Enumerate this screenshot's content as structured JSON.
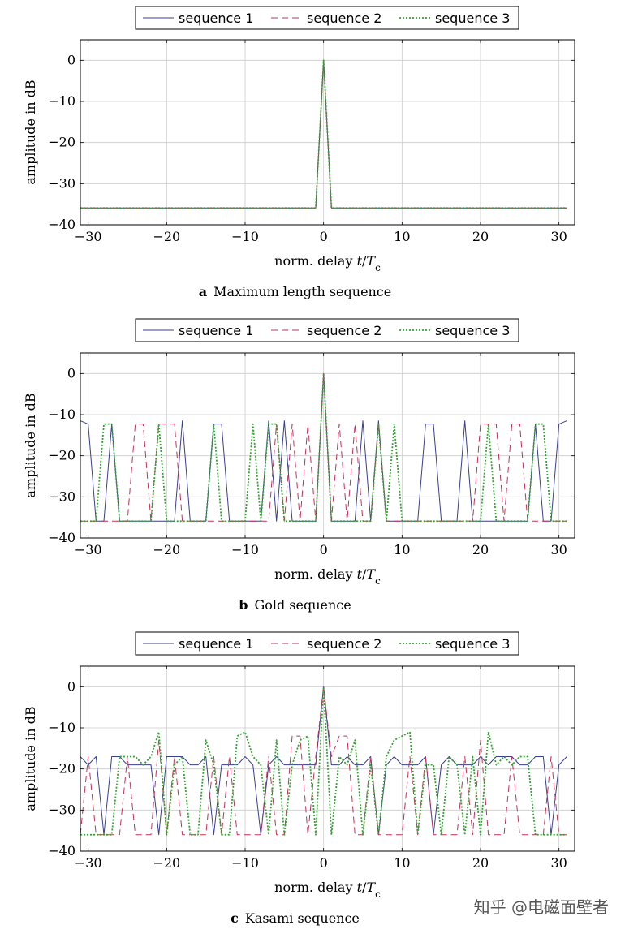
{
  "colors": {
    "sequence_1": "#3b3f8f",
    "sequence_2": "#c2305a",
    "sequence_3": "#2fa52f",
    "grid": "#cccccc"
  },
  "legend": [
    "sequence 1",
    "sequence 2",
    "sequence 3"
  ],
  "watermark": "知乎 @电磁面壁者",
  "chart_data": [
    {
      "type": "line",
      "caption_letter": "a",
      "caption_text": "Maximum length sequence",
      "xlabel": "norm. delay t/Tc",
      "ylabel": "amplitude in dB",
      "xlim": [
        -31,
        32
      ],
      "ylim": [
        -40,
        5
      ],
      "xticks": [
        -30,
        -20,
        -10,
        0,
        10,
        20,
        30
      ],
      "yticks": [
        0,
        -10,
        -20,
        -30,
        -40
      ],
      "tick_labels_x": [
        "−30",
        "−20",
        "−10",
        "0",
        "10",
        "20",
        "30"
      ],
      "tick_labels_y": [
        "0",
        "−10",
        "−20",
        "−30",
        "−40"
      ],
      "grid": true,
      "series": [
        {
          "name": "sequence 1",
          "x": [
            -31,
            -1,
            0,
            1,
            31
          ],
          "y": [
            -35.9,
            -35.9,
            0,
            -35.9,
            -35.9
          ]
        },
        {
          "name": "sequence 2",
          "x": [
            -31,
            -1,
            0,
            1,
            31
          ],
          "y": [
            -35.9,
            -35.9,
            0,
            -35.9,
            -35.9
          ]
        },
        {
          "name": "sequence 3",
          "x": [
            -31,
            -1,
            0,
            1,
            31
          ],
          "y": [
            -35.9,
            -35.9,
            0,
            -35.9,
            -35.9
          ]
        }
      ]
    },
    {
      "type": "line",
      "caption_letter": "b",
      "caption_text": "Gold sequence",
      "xlabel": "norm. delay t/Tc",
      "ylabel": "amplitude in dB",
      "xlim": [
        -31,
        32
      ],
      "ylim": [
        -40,
        5
      ],
      "xticks": [
        -30,
        -20,
        -10,
        0,
        10,
        20,
        30
      ],
      "yticks": [
        0,
        -10,
        -20,
        -30,
        -40
      ],
      "tick_labels_x": [
        "−30",
        "−20",
        "−10",
        "0",
        "10",
        "20",
        "30"
      ],
      "tick_labels_y": [
        "0",
        "−10",
        "−20",
        "−30",
        "−40"
      ],
      "grid": true,
      "series": [
        {
          "name": "sequence 1",
          "x": [
            -31,
            -30,
            -29,
            -28,
            -27,
            -26,
            -25,
            -24,
            -23,
            -22,
            -21,
            -20,
            -19,
            -18,
            -17,
            -16,
            -15,
            -14,
            -13,
            -12,
            -11,
            -10,
            -9,
            -8,
            -7,
            -6,
            -5,
            -4,
            -3,
            -2,
            -1,
            0,
            1,
            2,
            3,
            4,
            5,
            6,
            7,
            8,
            9,
            10,
            11,
            12,
            13,
            14,
            15,
            16,
            17,
            18,
            19,
            20,
            21,
            22,
            23,
            24,
            25,
            26,
            27,
            28,
            29,
            30,
            31
          ],
          "y": [
            -11.5,
            -12.3,
            -35.9,
            -35.9,
            -12.3,
            -35.9,
            -35.9,
            -35.9,
            -35.9,
            -35.9,
            -35.9,
            -35.9,
            -35.9,
            -11.5,
            -35.9,
            -35.9,
            -35.9,
            -12.3,
            -12.3,
            -35.9,
            -35.9,
            -35.9,
            -35.9,
            -35.9,
            -11.5,
            -35.9,
            -11.5,
            -35.9,
            -35.9,
            -35.9,
            -35.9,
            0,
            -35.9,
            -35.9,
            -35.9,
            -35.9,
            -11.5,
            -35.9,
            -11.5,
            -35.9,
            -35.9,
            -35.9,
            -35.9,
            -35.9,
            -12.3,
            -12.3,
            -35.9,
            -35.9,
            -35.9,
            -11.5,
            -35.9,
            -35.9,
            -35.9,
            -35.9,
            -35.9,
            -35.9,
            -35.9,
            -35.9,
            -12.3,
            -35.9,
            -35.9,
            -12.3,
            -11.5
          ]
        },
        {
          "name": "sequence 2",
          "x": [
            -31,
            -30,
            -29,
            -28,
            -27,
            -26,
            -25,
            -24,
            -23,
            -22,
            -21,
            -20,
            -19,
            -18,
            -17,
            -16,
            -15,
            -14,
            -13,
            -12,
            -11,
            -10,
            -9,
            -8,
            -7,
            -6,
            -5,
            -4,
            -3,
            -2,
            -1,
            0,
            1,
            2,
            3,
            4,
            5,
            6,
            7,
            8,
            9,
            10,
            11,
            12,
            13,
            14,
            15,
            16,
            17,
            18,
            19,
            20,
            21,
            22,
            23,
            24,
            25,
            26,
            27,
            28,
            29,
            30,
            31
          ],
          "y": [
            -35.9,
            -35.9,
            -35.9,
            -35.9,
            -35.9,
            -35.9,
            -35.9,
            -12.3,
            -12.3,
            -35.9,
            -12.3,
            -12.3,
            -12.3,
            -35.9,
            -35.9,
            -35.9,
            -35.9,
            -35.9,
            -35.9,
            -35.9,
            -35.9,
            -35.9,
            -35.9,
            -35.9,
            -35.9,
            -12.3,
            -35.9,
            -12.3,
            -35.9,
            -12.3,
            -35.9,
            0,
            -35.9,
            -12.3,
            -35.9,
            -12.3,
            -35.9,
            -35.9,
            -12.3,
            -35.9,
            -35.9,
            -35.9,
            -35.9,
            -35.9,
            -35.9,
            -35.9,
            -35.9,
            -35.9,
            -35.9,
            -35.9,
            -35.9,
            -12.3,
            -12.3,
            -12.3,
            -35.9,
            -12.3,
            -12.3,
            -35.9,
            -35.9,
            -35.9,
            -35.9,
            -35.9,
            -35.9
          ]
        },
        {
          "name": "sequence 3",
          "x": [
            -31,
            -30,
            -29,
            -28,
            -27,
            -26,
            -25,
            -24,
            -23,
            -22,
            -21,
            -20,
            -19,
            -18,
            -17,
            -16,
            -15,
            -14,
            -13,
            -12,
            -11,
            -10,
            -9,
            -8,
            -7,
            -6,
            -5,
            -4,
            -3,
            -2,
            -1,
            0,
            1,
            2,
            3,
            4,
            5,
            6,
            7,
            8,
            9,
            10,
            11,
            12,
            13,
            14,
            15,
            16,
            17,
            18,
            19,
            20,
            21,
            22,
            23,
            24,
            25,
            26,
            27,
            28,
            29,
            30,
            31
          ],
          "y": [
            -35.9,
            -35.9,
            -35.9,
            -12.3,
            -12.3,
            -35.9,
            -35.9,
            -35.9,
            -35.9,
            -35.9,
            -12.3,
            -35.9,
            -35.9,
            -35.9,
            -35.9,
            -35.9,
            -35.9,
            -12.3,
            -35.9,
            -35.9,
            -35.9,
            -35.9,
            -12.3,
            -35.9,
            -12.3,
            -12.3,
            -35.9,
            -35.9,
            -35.9,
            -35.9,
            -35.9,
            0,
            -35.9,
            -35.9,
            -35.9,
            -35.9,
            -35.9,
            -35.9,
            -12.3,
            -35.9,
            -12.3,
            -35.9,
            -35.9,
            -35.9,
            -35.9,
            -35.9,
            -35.9,
            -35.9,
            -35.9,
            -35.9,
            -35.9,
            -35.9,
            -12.3,
            -35.9,
            -35.9,
            -35.9,
            -35.9,
            -35.9,
            -12.3,
            -12.3,
            -35.9,
            -35.9,
            -35.9
          ]
        }
      ]
    },
    {
      "type": "line",
      "caption_letter": "c",
      "caption_text": "Kasami sequence",
      "xlabel": "norm. delay t/Tc",
      "ylabel": "amplitude in dB",
      "xlim": [
        -31,
        32
      ],
      "ylim": [
        -40,
        5
      ],
      "xticks": [
        -30,
        -20,
        -10,
        0,
        10,
        20,
        30
      ],
      "yticks": [
        0,
        -10,
        -20,
        -30,
        -40
      ],
      "tick_labels_x": [
        "−30",
        "−20",
        "−10",
        "0",
        "10",
        "20",
        "30"
      ],
      "tick_labels_y": [
        "0",
        "−10",
        "−20",
        "−30",
        "−40"
      ],
      "grid": true,
      "series": [
        {
          "name": "sequence 1",
          "x": [
            -31,
            -30,
            -29,
            -28,
            -27,
            -26,
            -25,
            -24,
            -23,
            -22,
            -21,
            -20,
            -19,
            -18,
            -17,
            -16,
            -15,
            -14,
            -13,
            -12,
            -11,
            -10,
            -9,
            -8,
            -7,
            -6,
            -5,
            -4,
            -3,
            -2,
            -1,
            0,
            1,
            2,
            3,
            4,
            5,
            6,
            7,
            8,
            9,
            10,
            11,
            12,
            13,
            14,
            15,
            16,
            17,
            18,
            19,
            20,
            21,
            22,
            23,
            24,
            25,
            26,
            27,
            28,
            29,
            30,
            31
          ],
          "y": [
            -17,
            -19,
            -17,
            -36,
            -17,
            -17,
            -19,
            -19,
            -19,
            -19,
            -36,
            -17,
            -17,
            -17,
            -19,
            -19,
            -17,
            -36,
            -19,
            -19,
            -19,
            -17,
            -19,
            -36,
            -19,
            -17,
            -19,
            -19,
            -19,
            -19,
            -19,
            0,
            -19,
            -19,
            -17,
            -19,
            -19,
            -17,
            -36,
            -19,
            -17,
            -19,
            -19,
            -19,
            -17,
            -36,
            -19,
            -17,
            -19,
            -19,
            -19,
            -17,
            -19,
            -17,
            -17,
            -17,
            -19,
            -19,
            -17,
            -17,
            -36,
            -19,
            -17
          ]
        },
        {
          "name": "sequence 2",
          "x": [
            -31,
            -30,
            -29,
            -28,
            -27,
            -26,
            -25,
            -24,
            -23,
            -22,
            -21,
            -20,
            -19,
            -18,
            -17,
            -16,
            -15,
            -14,
            -13,
            -12,
            -11,
            -10,
            -9,
            -8,
            -7,
            -6,
            -5,
            -4,
            -3,
            -2,
            -1,
            0,
            1,
            2,
            3,
            4,
            5,
            6,
            7,
            8,
            9,
            10,
            11,
            12,
            13,
            14,
            15,
            16,
            17,
            18,
            19,
            20,
            21,
            22,
            23,
            24,
            25,
            26,
            27,
            28,
            29,
            30,
            31
          ],
          "y": [
            -36,
            -17,
            -36,
            -36,
            -36,
            -36,
            -17,
            -36,
            -36,
            -36,
            -13,
            -36,
            -17,
            -36,
            -36,
            -36,
            -36,
            -17,
            -36,
            -17,
            -36,
            -36,
            -36,
            -36,
            -17,
            -36,
            -36,
            -12,
            -12,
            -36,
            -17,
            0,
            -17,
            -12,
            -12,
            -36,
            -36,
            -17,
            -36,
            -36,
            -36,
            -36,
            -17,
            -36,
            -17,
            -36,
            -36,
            -36,
            -36,
            -17,
            -36,
            -13,
            -36,
            -36,
            -36,
            -17,
            -36,
            -36,
            -36,
            -36,
            -17,
            -36,
            -36
          ]
        },
        {
          "name": "sequence 3",
          "x": [
            -31,
            -30,
            -29,
            -28,
            -27,
            -26,
            -25,
            -24,
            -23,
            -22,
            -21,
            -20,
            -19,
            -18,
            -17,
            -16,
            -15,
            -14,
            -13,
            -12,
            -11,
            -10,
            -9,
            -8,
            -7,
            -6,
            -5,
            -4,
            -3,
            -2,
            -1,
            0,
            1,
            2,
            3,
            4,
            5,
            6,
            7,
            8,
            9,
            10,
            11,
            12,
            13,
            14,
            15,
            16,
            17,
            18,
            19,
            20,
            21,
            22,
            23,
            24,
            25,
            26,
            27,
            28,
            29,
            30,
            31
          ],
          "y": [
            -36,
            -36,
            -36,
            -36,
            -36,
            -17,
            -17,
            -17,
            -19,
            -17,
            -11,
            -36,
            -19,
            -17,
            -36,
            -36,
            -13,
            -19,
            -36,
            -36,
            -12,
            -11,
            -17,
            -19,
            -36,
            -13,
            -36,
            -19,
            -13,
            -12,
            -36,
            0,
            -36,
            -17,
            -19,
            -13,
            -36,
            -19,
            -36,
            -17,
            -13,
            -12,
            -11,
            -36,
            -19,
            -19,
            -36,
            -17,
            -19,
            -36,
            -17,
            -36,
            -11,
            -19,
            -17,
            -19,
            -17,
            -17,
            -36,
            -36,
            -36,
            -36,
            -36
          ]
        }
      ]
    }
  ]
}
